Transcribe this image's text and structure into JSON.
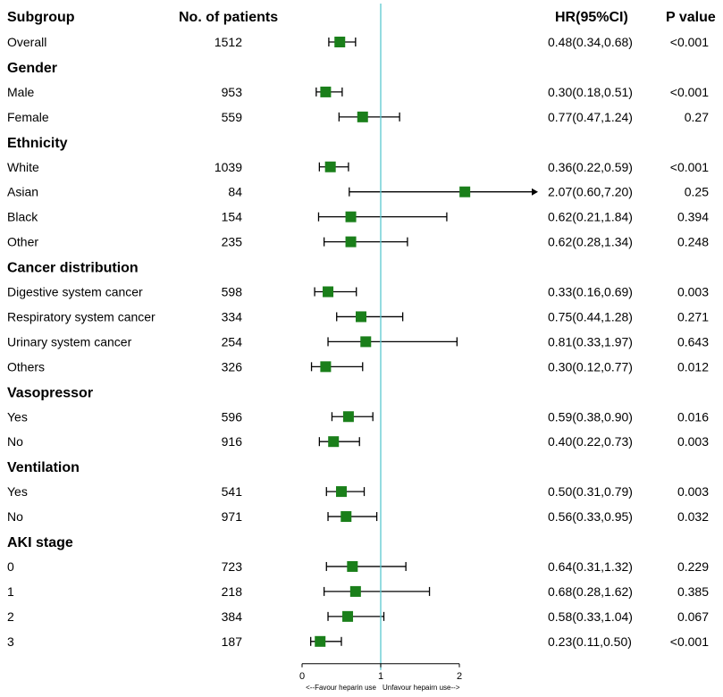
{
  "chart_data": {
    "type": "forest",
    "headers": {
      "subgroup": "Subgroup",
      "n": "No. of patients",
      "hr": "HR(95%CI)",
      "p": "P value"
    },
    "x_axis": {
      "ticks": [
        0,
        1,
        2
      ],
      "tick_labels": [
        "0",
        "1",
        "2"
      ],
      "range": [
        0,
        2
      ],
      "reference_line": 1,
      "left_label": "<--Favour heparin use",
      "right_label": "Unfavour hepairn use-->"
    },
    "colors": {
      "marker": "#1a7f1a",
      "reference": "#5bc8d0",
      "whisker": "#000000"
    },
    "rows": [
      {
        "type": "data",
        "label": "Overall",
        "n": "1512",
        "hr": 0.48,
        "lo": 0.34,
        "hi": 0.68,
        "hr_text": "0.48(0.34,0.68)",
        "p": "<0.001"
      },
      {
        "type": "group",
        "label": "Gender"
      },
      {
        "type": "data",
        "label": "Male",
        "n": "953",
        "hr": 0.3,
        "lo": 0.18,
        "hi": 0.51,
        "hr_text": "0.30(0.18,0.51)",
        "p": "<0.001"
      },
      {
        "type": "data",
        "label": "Female",
        "n": "559",
        "hr": 0.77,
        "lo": 0.47,
        "hi": 1.24,
        "hr_text": "0.77(0.47,1.24)",
        "p": "0.27"
      },
      {
        "type": "group",
        "label": "Ethnicity"
      },
      {
        "type": "data",
        "label": "White",
        "n": "1039",
        "hr": 0.36,
        "lo": 0.22,
        "hi": 0.59,
        "hr_text": "0.36(0.22,0.59)",
        "p": "<0.001"
      },
      {
        "type": "data",
        "label": "Asian",
        "n": "84",
        "hr": 2.07,
        "lo": 0.6,
        "hi": 7.2,
        "hr_text": "2.07(0.60,7.20)",
        "p": "0.25"
      },
      {
        "type": "data",
        "label": "Black",
        "n": "154",
        "hr": 0.62,
        "lo": 0.21,
        "hi": 1.84,
        "hr_text": "0.62(0.21,1.84)",
        "p": "0.394"
      },
      {
        "type": "data",
        "label": "Other",
        "n": "235",
        "hr": 0.62,
        "lo": 0.28,
        "hi": 1.34,
        "hr_text": "0.62(0.28,1.34)",
        "p": "0.248"
      },
      {
        "type": "group",
        "label": "Cancer distribution"
      },
      {
        "type": "data",
        "label": "Digestive system cancer",
        "n": "598",
        "hr": 0.33,
        "lo": 0.16,
        "hi": 0.69,
        "hr_text": "0.33(0.16,0.69)",
        "p": "0.003"
      },
      {
        "type": "data",
        "label": "Respiratory system cancer",
        "n": "334",
        "hr": 0.75,
        "lo": 0.44,
        "hi": 1.28,
        "hr_text": "0.75(0.44,1.28)",
        "p": "0.271"
      },
      {
        "type": "data",
        "label": "Urinary system cancer",
        "n": "254",
        "hr": 0.81,
        "lo": 0.33,
        "hi": 1.97,
        "hr_text": "0.81(0.33,1.97)",
        "p": "0.643"
      },
      {
        "type": "data",
        "label": "Others",
        "n": "326",
        "hr": 0.3,
        "lo": 0.12,
        "hi": 0.77,
        "hr_text": "0.30(0.12,0.77)",
        "p": "0.012"
      },
      {
        "type": "group",
        "label": "Vasopressor"
      },
      {
        "type": "data",
        "label": "Yes",
        "n": "596",
        "hr": 0.59,
        "lo": 0.38,
        "hi": 0.9,
        "hr_text": "0.59(0.38,0.90)",
        "p": "0.016"
      },
      {
        "type": "data",
        "label": "No",
        "n": "916",
        "hr": 0.4,
        "lo": 0.22,
        "hi": 0.73,
        "hr_text": "0.40(0.22,0.73)",
        "p": "0.003"
      },
      {
        "type": "group",
        "label": "Ventilation"
      },
      {
        "type": "data",
        "label": "Yes",
        "n": "541",
        "hr": 0.5,
        "lo": 0.31,
        "hi": 0.79,
        "hr_text": "0.50(0.31,0.79)",
        "p": "0.003"
      },
      {
        "type": "data",
        "label": "No",
        "n": "971",
        "hr": 0.56,
        "lo": 0.33,
        "hi": 0.95,
        "hr_text": "0.56(0.33,0.95)",
        "p": "0.032"
      },
      {
        "type": "group",
        "label": "AKI stage"
      },
      {
        "type": "data",
        "label": "0",
        "n": "723",
        "hr": 0.64,
        "lo": 0.31,
        "hi": 1.32,
        "hr_text": "0.64(0.31,1.32)",
        "p": "0.229"
      },
      {
        "type": "data",
        "label": "1",
        "n": "218",
        "hr": 0.68,
        "lo": 0.28,
        "hi": 1.62,
        "hr_text": "0.68(0.28,1.62)",
        "p": "0.385"
      },
      {
        "type": "data",
        "label": "2",
        "n": "384",
        "hr": 0.58,
        "lo": 0.33,
        "hi": 1.04,
        "hr_text": "0.58(0.33,1.04)",
        "p": "0.067"
      },
      {
        "type": "data",
        "label": "3",
        "n": "187",
        "hr": 0.23,
        "lo": 0.11,
        "hi": 0.5,
        "hr_text": "0.23(0.11,0.50)",
        "p": "<0.001"
      }
    ]
  }
}
